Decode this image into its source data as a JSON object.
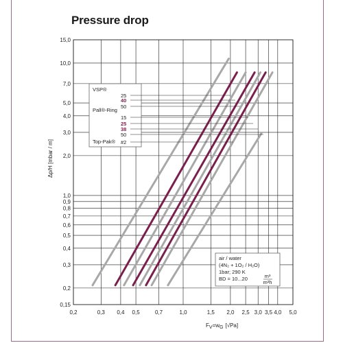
{
  "title": "Pressure drop",
  "chart_data": {
    "type": "line",
    "xscale": "log",
    "yscale": "log",
    "xlim": [
      0.2,
      5.0
    ],
    "ylim": [
      0.15,
      15.0
    ],
    "xticks": [
      "0,2",
      "0,3",
      "0,4",
      "0,5",
      "0,7",
      "1,0",
      "1,5",
      "2,0",
      "2,5",
      "3,0",
      "3,5",
      "4,0",
      "5,0"
    ],
    "xtick_values": [
      0.2,
      0.3,
      0.4,
      0.5,
      0.7,
      1.0,
      1.5,
      2.0,
      2.5,
      3.0,
      3.5,
      4.0,
      5.0
    ],
    "yticks": [
      "0,15",
      "0,2",
      "0,3",
      "0,4",
      "0,5",
      "0,6",
      "0,7",
      "0,8",
      "0,9",
      "1,0",
      "2,0",
      "3,0",
      "4,0",
      "5,0",
      "7,0",
      "10,0",
      "15,0"
    ],
    "ytick_values": [
      0.15,
      0.2,
      0.3,
      0.4,
      0.5,
      0.6,
      0.7,
      0.8,
      0.9,
      1.0,
      2.0,
      3.0,
      4.0,
      5.0,
      7.0,
      10.0,
      15.0
    ],
    "xlabel": "F",
    "xlabel_sub": "V",
    "xlabel_mid": "=w",
    "xlabel_sub2": "G",
    "xlabel_rest": "[√Pa]",
    "ylabel": "Δp/H [mbar / m]",
    "grid": true,
    "legend": {
      "groups": [
        {
          "name": "VSP®",
          "values": [
            "25",
            "40",
            "50"
          ],
          "highlight": [
            false,
            true,
            false
          ]
        },
        {
          "name": "Pall®-Ring",
          "values": [
            "15",
            "25",
            "38",
            "50"
          ],
          "highlight": [
            false,
            true,
            true,
            false
          ]
        },
        {
          "name": "Top-Pak®",
          "values": [
            "#2"
          ],
          "highlight": [
            false
          ]
        }
      ]
    },
    "series": [
      {
        "color": "#a8a8a8",
        "x": [
          0.265,
          1.95
        ],
        "y": [
          0.21,
          10.8
        ]
      },
      {
        "color": "#7a1f4e",
        "x": [
          0.37,
          2.2
        ],
        "y": [
          0.21,
          8.5
        ]
      },
      {
        "color": "#a8a8a8",
        "x": [
          0.42,
          2.5
        ],
        "y": [
          0.21,
          8.5
        ]
      },
      {
        "color": "#7a1f4e",
        "x": [
          0.48,
          2.85
        ],
        "y": [
          0.21,
          8.5
        ]
      },
      {
        "color": "#a8a8a8",
        "x": [
          0.53,
          3.1
        ],
        "y": [
          0.21,
          8.5
        ]
      },
      {
        "color": "#7a1f4e",
        "x": [
          0.58,
          3.35
        ],
        "y": [
          0.21,
          8.5
        ]
      },
      {
        "color": "#a8a8a8",
        "x": [
          0.63,
          3.7
        ],
        "y": [
          0.21,
          8.5
        ]
      },
      {
        "color": "#a8a8a8",
        "x": [
          0.8,
          3.15
        ],
        "y": [
          0.21,
          2.95
        ]
      }
    ],
    "annotation": {
      "lines": [
        "air / water",
        "(4N₂ + 1O₂ / H₂O)",
        "1bar; 290 K",
        "BD = 10...20"
      ],
      "unit_num": "m³",
      "unit_den": "m²h"
    },
    "colors": {
      "grid": "#1a1a1a",
      "purple": "#7a1f4e",
      "gray": "#a8a8a8",
      "frame": "#9c6a86"
    }
  }
}
